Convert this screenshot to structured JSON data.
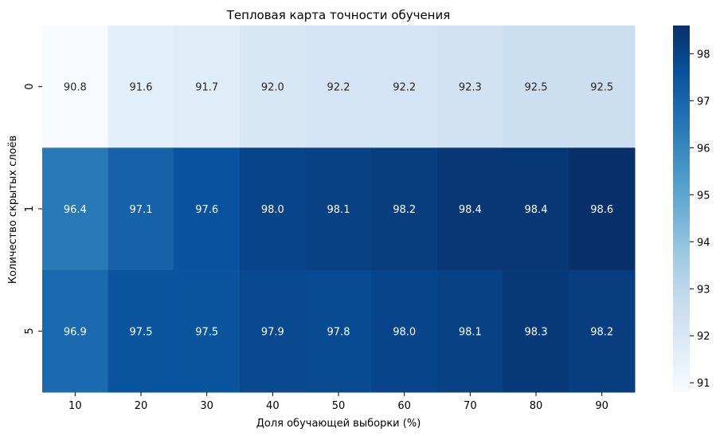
{
  "chart_data": {
    "type": "heatmap",
    "title": "Тепловая карта точности обучения",
    "xlabel": "Доля обучающей выборки (%)",
    "ylabel": "Количество скрытых слоёв",
    "x_categories": [
      "10",
      "20",
      "30",
      "40",
      "50",
      "60",
      "70",
      "80",
      "90"
    ],
    "y_categories": [
      "0",
      "1",
      "5"
    ],
    "values": [
      [
        90.8,
        91.6,
        91.7,
        92.0,
        92.2,
        92.2,
        92.3,
        92.5,
        92.5
      ],
      [
        96.4,
        97.1,
        97.6,
        98.0,
        98.1,
        98.2,
        98.4,
        98.4,
        98.6
      ],
      [
        96.9,
        97.5,
        97.5,
        97.9,
        97.8,
        98.0,
        98.1,
        98.3,
        98.2
      ]
    ],
    "color_range": [
      90.8,
      98.6
    ],
    "colormap": "Blues",
    "colorbar_ticks": [
      "91",
      "92",
      "93",
      "94",
      "95",
      "96",
      "97",
      "98"
    ]
  }
}
